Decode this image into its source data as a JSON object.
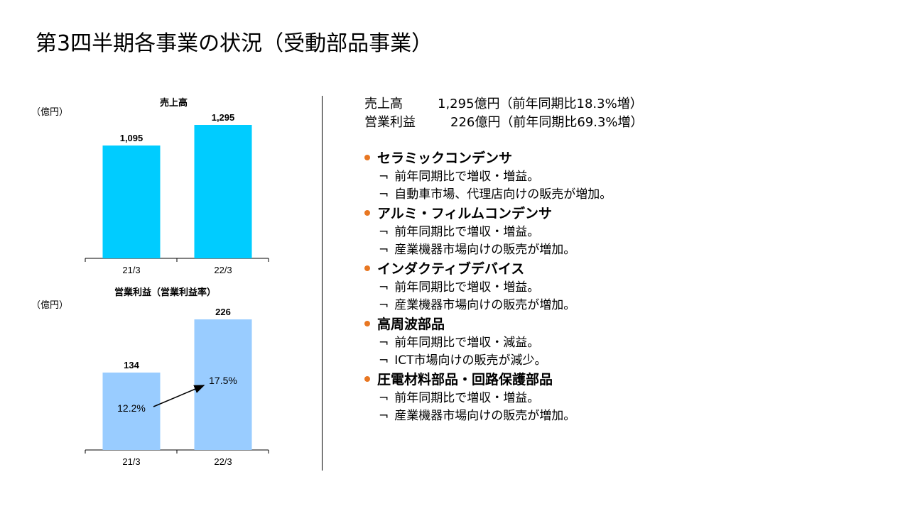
{
  "page": {
    "title": "第3四半期各事業の状況（受動部品事業）"
  },
  "summary": {
    "sales_label": "売上高",
    "sales_value": "1,295億円（前年同期比18.3%増）",
    "op_label": "営業利益",
    "op_value": "226億円（前年同期比69.3%増）"
  },
  "sections": [
    {
      "title": "セラミックコンデンサ",
      "items": [
        "前年同期比で増収・増益。",
        "自動車市場、代理店向けの販売が増加。"
      ]
    },
    {
      "title": "アルミ・フィルムコンデンサ",
      "items": [
        "前年同期比で増収・増益。",
        "産業機器市場向けの販売が増加。"
      ]
    },
    {
      "title": "インダクティブデバイス",
      "items": [
        "前年同期比で増収・増益。",
        "産業機器市場向けの販売が増加。"
      ]
    },
    {
      "title": "高周波部品",
      "items": [
        "前年同期比で増収・減益。",
        "ICT市場向けの販売が減少。"
      ]
    },
    {
      "title": "圧電材料部品・回路保護部品",
      "items": [
        "前年同期比で増収・増益。",
        "産業機器市場向けの販売が増加。"
      ]
    }
  ],
  "style": {
    "bullet_color": "#E87722",
    "item_mark": "¬"
  },
  "chart_data": [
    {
      "type": "bar",
      "title": "売上高",
      "unit_label": "（億円）",
      "categories": [
        "21/3",
        "22/3"
      ],
      "values": [
        1095,
        1295
      ],
      "value_labels": [
        "1,095",
        "1,295"
      ],
      "color": "#00CCFF"
    },
    {
      "type": "bar",
      "title": "営業利益（営業利益率）",
      "unit_label": "（億円）",
      "categories": [
        "21/3",
        "22/3"
      ],
      "values": [
        134,
        226
      ],
      "value_labels": [
        "134",
        "226"
      ],
      "margins": [
        "12.2%",
        "17.5%"
      ],
      "color": "#99CCFF"
    }
  ]
}
